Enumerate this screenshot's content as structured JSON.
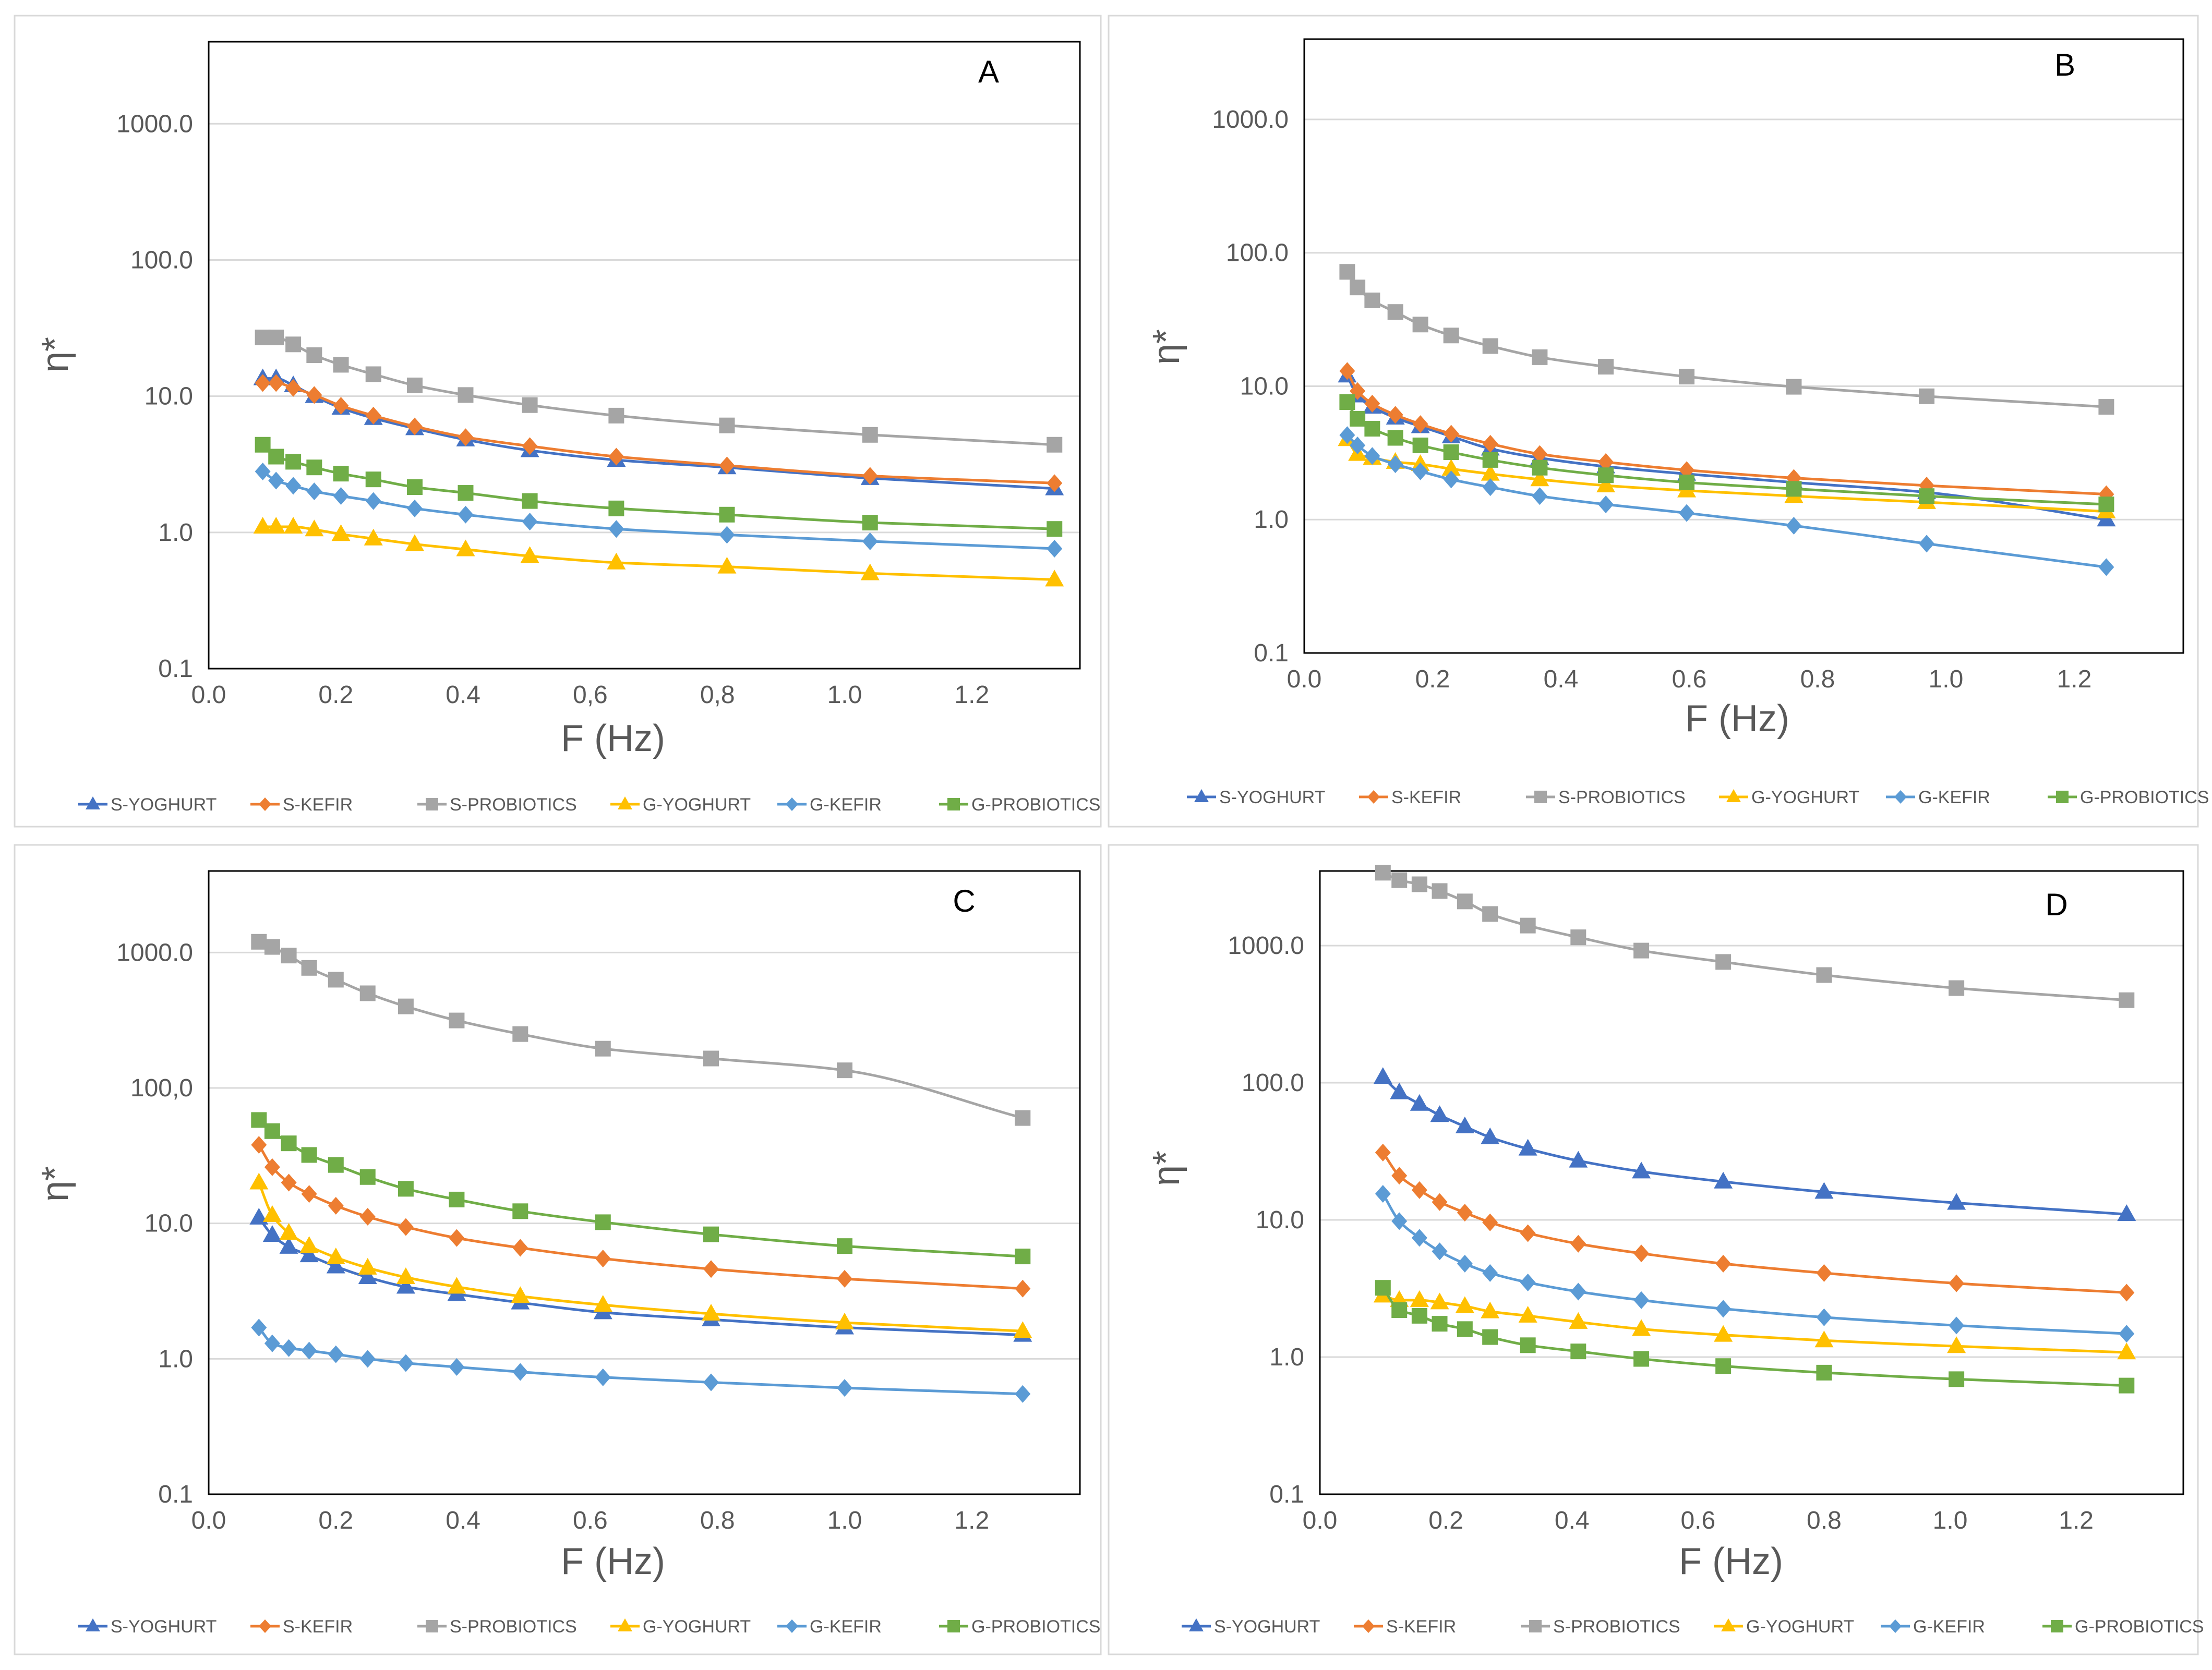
{
  "series_colors": {
    "S-YOGHURT": "#4472c4",
    "S-KEFIR": "#ed7d31",
    "S-PROBIOTICS": "#a5a5a5",
    "G-YOGHURT": "#ffc000",
    "G-KEFIR": "#5b9bd5",
    "G-PROBIOTICS": "#70ad47"
  },
  "series_markers": {
    "S-YOGHURT": "triangle",
    "S-KEFIR": "diamond",
    "S-PROBIOTICS": "square",
    "G-YOGHURT": "triangle",
    "G-KEFIR": "diamond",
    "G-PROBIOTICS": "square"
  },
  "chart_data": [
    {
      "type": "line",
      "panel_label": "A",
      "xlabel": "F (Hz)",
      "ylabel": "η*",
      "yscale": "log",
      "ylim": [
        0.1,
        4000
      ],
      "xlim": [
        0,
        1.37
      ],
      "x_ticks": [
        "0.0",
        "0.2",
        "0.4",
        "0,6",
        "0,8",
        "1.0",
        "1.2"
      ],
      "x_tick_values": [
        0,
        0.2,
        0.4,
        0.6,
        0.8,
        1.0,
        1.2
      ],
      "y_ticks": [
        "0.1",
        "1.0",
        "10.0",
        "100.0",
        "1000.0"
      ],
      "y_tick_values": [
        0.1,
        1,
        10,
        100,
        1000
      ],
      "legend": [
        "S-YOGHURT",
        "S-KEFIR",
        "S-PROBIOTICS",
        "G-YOGHURT",
        "G-KEFIR",
        "G-PROBIOTICS"
      ],
      "x": [
        0.085,
        0.106,
        0.133,
        0.166,
        0.208,
        0.259,
        0.324,
        0.404,
        0.505,
        0.641,
        0.815,
        1.04,
        1.33
      ],
      "series": [
        {
          "name": "S-YOGHURT",
          "values": [
            13.5,
            13.5,
            12.0,
            10.0,
            8.2,
            6.9,
            5.8,
            4.8,
            4.0,
            3.4,
            3.0,
            2.5,
            2.1
          ]
        },
        {
          "name": "S-KEFIR",
          "values": [
            12.5,
            12.5,
            11.5,
            10.2,
            8.5,
            7.2,
            6.0,
            5.0,
            4.3,
            3.6,
            3.1,
            2.6,
            2.3
          ]
        },
        {
          "name": "S-PROBIOTICS",
          "values": [
            27,
            27,
            24,
            20,
            17,
            14.5,
            12,
            10.2,
            8.6,
            7.2,
            6.1,
            5.2,
            4.4
          ]
        },
        {
          "name": "G-YOGHURT",
          "values": [
            1.1,
            1.1,
            1.1,
            1.05,
            0.97,
            0.9,
            0.82,
            0.75,
            0.67,
            0.6,
            0.56,
            0.5,
            0.45
          ]
        },
        {
          "name": "G-KEFIR",
          "values": [
            2.8,
            2.4,
            2.2,
            2.0,
            1.85,
            1.7,
            1.5,
            1.35,
            1.2,
            1.06,
            0.96,
            0.86,
            0.76
          ]
        },
        {
          "name": "G-PROBIOTICS",
          "values": [
            4.4,
            3.6,
            3.3,
            3.0,
            2.7,
            2.45,
            2.15,
            1.95,
            1.7,
            1.5,
            1.35,
            1.18,
            1.06
          ]
        }
      ]
    },
    {
      "type": "line",
      "panel_label": "B",
      "xlabel": "F (Hz)",
      "ylabel": "η*",
      "yscale": "log",
      "ylim": [
        0.1,
        4000
      ],
      "xlim": [
        0,
        1.37
      ],
      "x_ticks": [
        "0.0",
        "0.2",
        "0.4",
        "0.6",
        "0.8",
        "1.0",
        "1.2"
      ],
      "x_tick_values": [
        0,
        0.2,
        0.4,
        0.6,
        0.8,
        1.0,
        1.2
      ],
      "y_ticks": [
        "0.1",
        "1.0",
        "10.0",
        "100.0",
        "1000.0"
      ],
      "y_tick_values": [
        0.1,
        1,
        10,
        100,
        1000
      ],
      "legend": [
        "S-YOGHURT",
        "S-KEFIR",
        "S-PROBIOTICS",
        "G-YOGHURT",
        "G-KEFIR",
        "G-PROBIOTICS"
      ],
      "x": [
        0.067,
        0.083,
        0.106,
        0.142,
        0.181,
        0.229,
        0.29,
        0.367,
        0.47,
        0.596,
        0.763,
        0.97,
        1.25
      ],
      "series": [
        {
          "name": "S-YOGHURT",
          "values": [
            12,
            8.5,
            7.0,
            5.8,
            5.0,
            4.2,
            3.4,
            2.9,
            2.5,
            2.2,
            1.9,
            1.6,
            1.0
          ]
        },
        {
          "name": "S-KEFIR",
          "values": [
            13,
            9.2,
            7.4,
            6.1,
            5.2,
            4.4,
            3.7,
            3.1,
            2.7,
            2.35,
            2.05,
            1.8,
            1.55
          ]
        },
        {
          "name": "S-PROBIOTICS",
          "values": [
            72,
            55,
            44,
            36,
            29,
            24,
            20,
            16.5,
            14,
            11.8,
            9.9,
            8.4,
            7.0
          ]
        },
        {
          "name": "G-YOGHURT",
          "values": [
            4.0,
            3.1,
            2.9,
            2.7,
            2.6,
            2.4,
            2.2,
            2.0,
            1.8,
            1.65,
            1.5,
            1.35,
            1.15
          ]
        },
        {
          "name": "G-KEFIR",
          "values": [
            4.3,
            3.6,
            3.0,
            2.6,
            2.3,
            2.0,
            1.75,
            1.5,
            1.3,
            1.12,
            0.9,
            0.66,
            0.44
          ]
        },
        {
          "name": "G-PROBIOTICS",
          "values": [
            7.6,
            5.7,
            4.8,
            4.1,
            3.6,
            3.2,
            2.8,
            2.45,
            2.15,
            1.9,
            1.7,
            1.5,
            1.3
          ]
        }
      ]
    },
    {
      "type": "line",
      "panel_label": "C",
      "xlabel": "F (Hz)",
      "ylabel": "η*",
      "yscale": "log",
      "ylim": [
        0.1,
        4000
      ],
      "xlim": [
        0,
        1.37
      ],
      "x_ticks": [
        "0.0",
        "0.2",
        "0.4",
        "0.6",
        "0.8",
        "1.0",
        "1.2"
      ],
      "x_tick_values": [
        0,
        0.2,
        0.4,
        0.6,
        0.8,
        1.0,
        1.2
      ],
      "y_ticks": [
        "0.1",
        "1.0",
        "10.0",
        "100,0",
        "1000.0"
      ],
      "y_tick_values": [
        0.1,
        1,
        10,
        100,
        1000
      ],
      "legend": [
        "S-YOGHURT",
        "S-KEFIR",
        "S-PROBIOTICS",
        "G-YOGHURT",
        "G-KEFIR",
        "G-PROBIOTICS"
      ],
      "x": [
        0.079,
        0.1,
        0.126,
        0.158,
        0.2,
        0.25,
        0.31,
        0.39,
        0.49,
        0.62,
        0.79,
        1.0,
        1.28
      ],
      "series": [
        {
          "name": "S-YOGHURT",
          "values": [
            11,
            8.2,
            6.7,
            5.8,
            4.8,
            4.0,
            3.4,
            3.0,
            2.6,
            2.2,
            1.95,
            1.7,
            1.5
          ]
        },
        {
          "name": "S-KEFIR",
          "values": [
            38,
            26,
            20,
            16.5,
            13.5,
            11.2,
            9.4,
            7.8,
            6.6,
            5.5,
            4.6,
            3.9,
            3.3
          ]
        },
        {
          "name": "S-PROBIOTICS",
          "values": [
            1200,
            1100,
            950,
            770,
            630,
            500,
            400,
            315,
            250,
            195,
            165,
            135,
            60
          ]
        },
        {
          "name": "G-YOGHURT",
          "values": [
            20,
            11.5,
            8.5,
            6.8,
            5.6,
            4.7,
            4.0,
            3.4,
            2.9,
            2.5,
            2.15,
            1.85,
            1.6
          ]
        },
        {
          "name": "G-KEFIR",
          "values": [
            1.7,
            1.3,
            1.2,
            1.15,
            1.08,
            1.0,
            0.93,
            0.87,
            0.8,
            0.73,
            0.67,
            0.61,
            0.55
          ]
        },
        {
          "name": "G-PROBIOTICS",
          "values": [
            58,
            48,
            39,
            32,
            27,
            22,
            18,
            15,
            12.3,
            10.2,
            8.3,
            6.8,
            5.7
          ]
        }
      ]
    },
    {
      "type": "line",
      "panel_label": "D",
      "xlabel": "F (Hz)",
      "ylabel": "η*",
      "yscale": "log",
      "ylim": [
        0.1,
        3500
      ],
      "xlim": [
        0,
        1.37
      ],
      "x_ticks": [
        "0.0",
        "0.2",
        "0.4",
        "0.6",
        "0.8",
        "1.0",
        "1.2"
      ],
      "x_tick_values": [
        0,
        0.2,
        0.4,
        0.6,
        0.8,
        1.0,
        1.2
      ],
      "y_ticks": [
        "0.1",
        "1.0",
        "10.0",
        "100.0",
        "1000.0"
      ],
      "y_tick_values": [
        0.1,
        1,
        10,
        100,
        1000
      ],
      "legend": [
        "S-YOGHURT",
        "S-KEFIR",
        "S-PROBIOTICS",
        "G-YOGHURT",
        "G-KEFIR",
        "G-PROBIOTICS"
      ],
      "x": [
        0.1,
        0.126,
        0.158,
        0.19,
        0.23,
        0.27,
        0.33,
        0.41,
        0.51,
        0.64,
        0.8,
        1.01,
        1.28
      ],
      "series": [
        {
          "name": "S-YOGHURT",
          "values": [
            110,
            85,
            70,
            58,
            48,
            40,
            33,
            27,
            22.5,
            19,
            16,
            13.3,
            11
          ]
        },
        {
          "name": "S-KEFIR",
          "values": [
            31,
            21,
            16.5,
            13.5,
            11.3,
            9.6,
            8.0,
            6.7,
            5.7,
            4.8,
            4.1,
            3.45,
            2.95
          ]
        },
        {
          "name": "S-PROBIOTICS",
          "values": [
            3400,
            3000,
            2800,
            2500,
            2100,
            1700,
            1400,
            1150,
            920,
            760,
            610,
            490,
            400
          ]
        },
        {
          "name": "G-YOGHURT",
          "values": [
            2.8,
            2.6,
            2.6,
            2.5,
            2.35,
            2.15,
            2.0,
            1.8,
            1.6,
            1.45,
            1.32,
            1.2,
            1.08
          ]
        },
        {
          "name": "G-KEFIR",
          "values": [
            15.5,
            9.8,
            7.4,
            5.9,
            4.8,
            4.1,
            3.5,
            3.0,
            2.6,
            2.25,
            1.95,
            1.7,
            1.48
          ]
        },
        {
          "name": "G-PROBIOTICS",
          "values": [
            3.2,
            2.2,
            2.0,
            1.75,
            1.6,
            1.4,
            1.22,
            1.1,
            0.97,
            0.86,
            0.77,
            0.69,
            0.62
          ]
        }
      ]
    }
  ]
}
